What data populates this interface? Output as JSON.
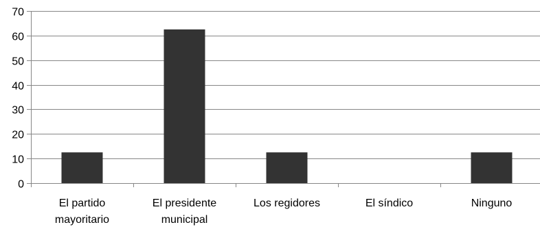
{
  "chart_data": {
    "type": "bar",
    "categories": [
      [
        "El partido",
        "mayoritario"
      ],
      [
        "El presidente",
        "municipal"
      ],
      [
        "Los regidores"
      ],
      [
        "El síndico"
      ],
      [
        "Ninguno"
      ]
    ],
    "values": [
      12.5,
      62.5,
      12.5,
      0,
      12.5
    ],
    "ylim": [
      0,
      70
    ],
    "yticks": [
      0,
      10,
      20,
      30,
      40,
      50,
      60,
      70
    ],
    "title": "",
    "xlabel": "",
    "ylabel": "",
    "grid": true,
    "legend": "none",
    "bar_color": "#333333",
    "grid_color": "#868686",
    "axis_color": "#868686"
  }
}
